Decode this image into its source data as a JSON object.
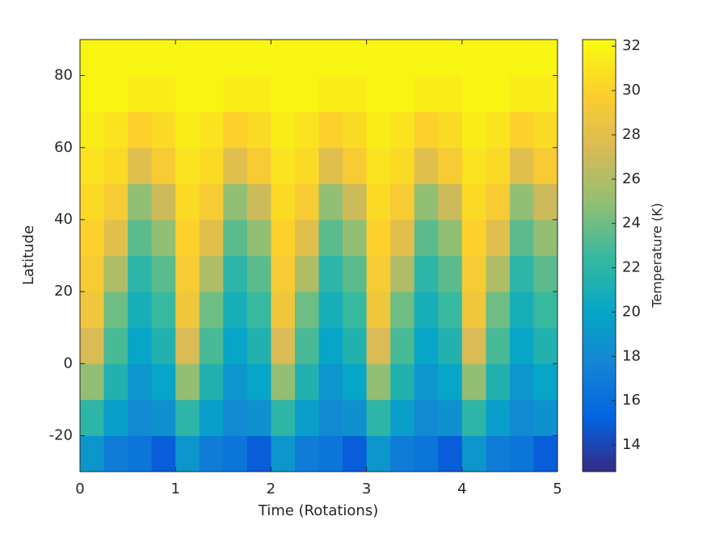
{
  "chart_data": {
    "type": "heatmap",
    "xlabel": "Time (Rotations)",
    "ylabel": "Latitude",
    "colorbar_label": "Temperature (K)",
    "xbins": [
      0,
      0.25,
      0.5,
      0.75,
      1,
      1.25,
      1.5,
      1.75,
      2,
      2.25,
      2.5,
      2.75,
      3,
      3.25,
      3.5,
      3.75,
      4,
      4.25,
      4.5,
      4.75,
      5
    ],
    "ybins": [
      -30,
      -20,
      -10,
      0,
      10,
      20,
      30,
      40,
      50,
      60,
      70,
      80,
      90
    ],
    "z": [
      [
        19,
        17,
        16.5,
        15,
        19,
        17,
        16.5,
        15,
        19,
        17,
        16.5,
        15,
        19,
        17,
        16.5,
        15,
        19,
        17,
        16.5,
        15
      ],
      [
        22,
        19.5,
        18,
        18.5,
        22,
        19.5,
        18,
        18.5,
        22,
        19.5,
        18,
        18.5,
        22,
        19.5,
        18,
        18.5,
        22,
        19.5,
        18,
        18.5
      ],
      [
        25,
        21.5,
        19,
        20,
        25,
        21.5,
        19,
        20,
        25,
        21.5,
        19,
        20,
        25,
        21.5,
        19,
        20,
        25,
        21.5,
        19,
        20
      ],
      [
        27.5,
        23,
        20,
        21.5,
        27.5,
        23,
        20,
        21.5,
        27.5,
        23,
        20,
        21.5,
        27.5,
        23,
        20,
        21.5,
        27.5,
        23,
        20,
        21.5
      ],
      [
        29,
        24,
        21,
        22.5,
        29,
        24,
        21,
        22.5,
        29,
        24,
        21,
        22.5,
        29,
        24,
        21,
        22.5,
        29,
        24,
        21,
        22.5
      ],
      [
        29.5,
        26,
        22,
        23.5,
        29.5,
        26,
        22,
        23.5,
        29.5,
        26,
        22,
        23.5,
        29.5,
        26,
        22,
        23.5,
        29.5,
        26,
        22,
        23.5
      ],
      [
        30,
        28,
        23.5,
        25,
        30,
        28,
        23.5,
        25,
        30,
        28,
        23.5,
        25,
        30,
        28,
        23.5,
        25,
        30,
        28,
        23.5,
        25
      ],
      [
        30.5,
        29.5,
        25,
        27,
        30.5,
        29.5,
        25,
        27,
        30.5,
        29.5,
        25,
        27,
        30.5,
        29.5,
        25,
        27,
        30.5,
        29.5,
        25,
        27
      ],
      [
        31,
        30.5,
        28,
        29.5,
        31,
        30.5,
        28,
        29.5,
        31,
        30.5,
        28,
        29.5,
        31,
        30.5,
        28,
        29.5,
        31,
        30.5,
        28,
        29.5
      ],
      [
        31.5,
        31,
        30,
        30.5,
        31.5,
        31,
        30,
        30.5,
        31.5,
        31,
        30,
        30.5,
        31.5,
        31,
        30,
        30.5,
        31.5,
        31,
        30,
        30.5
      ],
      [
        32,
        32,
        31.5,
        31.5,
        32,
        32,
        31.5,
        31.5,
        32,
        32,
        31.5,
        31.5,
        32,
        32,
        31.5,
        31.5,
        32,
        32,
        31.5,
        31.5
      ],
      [
        32,
        32,
        32,
        32,
        32,
        32,
        32,
        32,
        32,
        32,
        32,
        32,
        32,
        32,
        32,
        32,
        32,
        32,
        32,
        32
      ]
    ],
    "xlim": [
      0,
      5
    ],
    "xticks": [
      0,
      1,
      2,
      3,
      4,
      5
    ],
    "ylim": [
      -30,
      90
    ],
    "yticks": [
      -20,
      0,
      20,
      40,
      60,
      80
    ],
    "clim": [
      12.8,
      32.3
    ],
    "cticks": [
      14,
      16,
      18,
      20,
      22,
      24,
      26,
      28,
      30,
      32
    ],
    "colormap": [
      "#352a87",
      "#0363e1",
      "#1485d4",
      "#06a7c6",
      "#38b99e",
      "#92bf73",
      "#d9ba56",
      "#fcce2e",
      "#f9fb0e"
    ]
  }
}
